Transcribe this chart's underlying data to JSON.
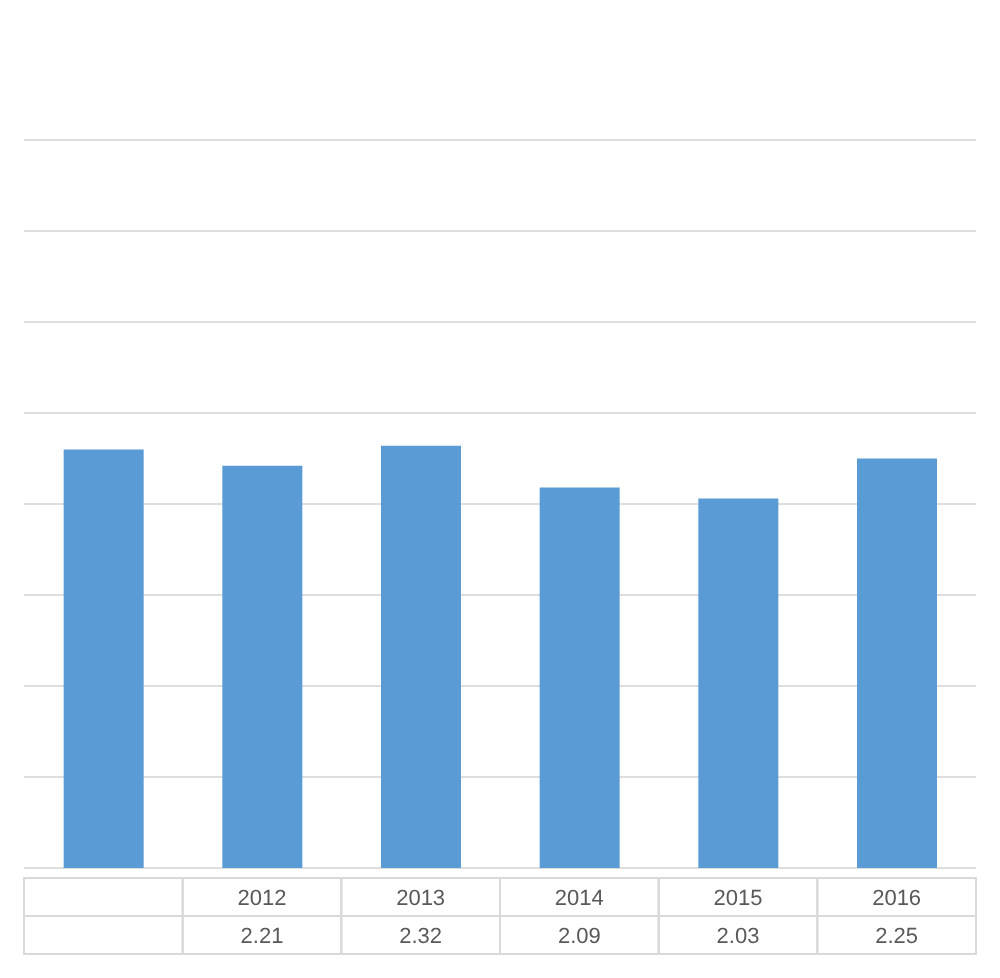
{
  "chart_data": {
    "type": "bar",
    "categories": [
      null,
      "2012",
      "2013",
      "2014",
      "2015",
      "2016"
    ],
    "values": [
      2.3,
      2.21,
      2.32,
      2.09,
      2.03,
      2.25
    ],
    "value_labels": [
      null,
      "2.21",
      "2.32",
      "2.09",
      "2.03",
      "2.25"
    ],
    "color": "#5b9bd5",
    "ylim": [
      0,
      4
    ],
    "yticks": [
      {
        "value": 0,
        "label": null
      },
      {
        "value": 0.5,
        "label": null
      },
      {
        "value": 1,
        "label": null
      },
      {
        "value": 1.5,
        "label": null
      },
      {
        "value": 2,
        "label": null
      },
      {
        "value": 2.5,
        "label": null
      },
      {
        "value": 3,
        "label": null
      },
      {
        "value": 3.5,
        "label": null
      },
      {
        "value": 4,
        "label": null
      }
    ],
    "grid": "y",
    "tick_labels": "x"
  }
}
